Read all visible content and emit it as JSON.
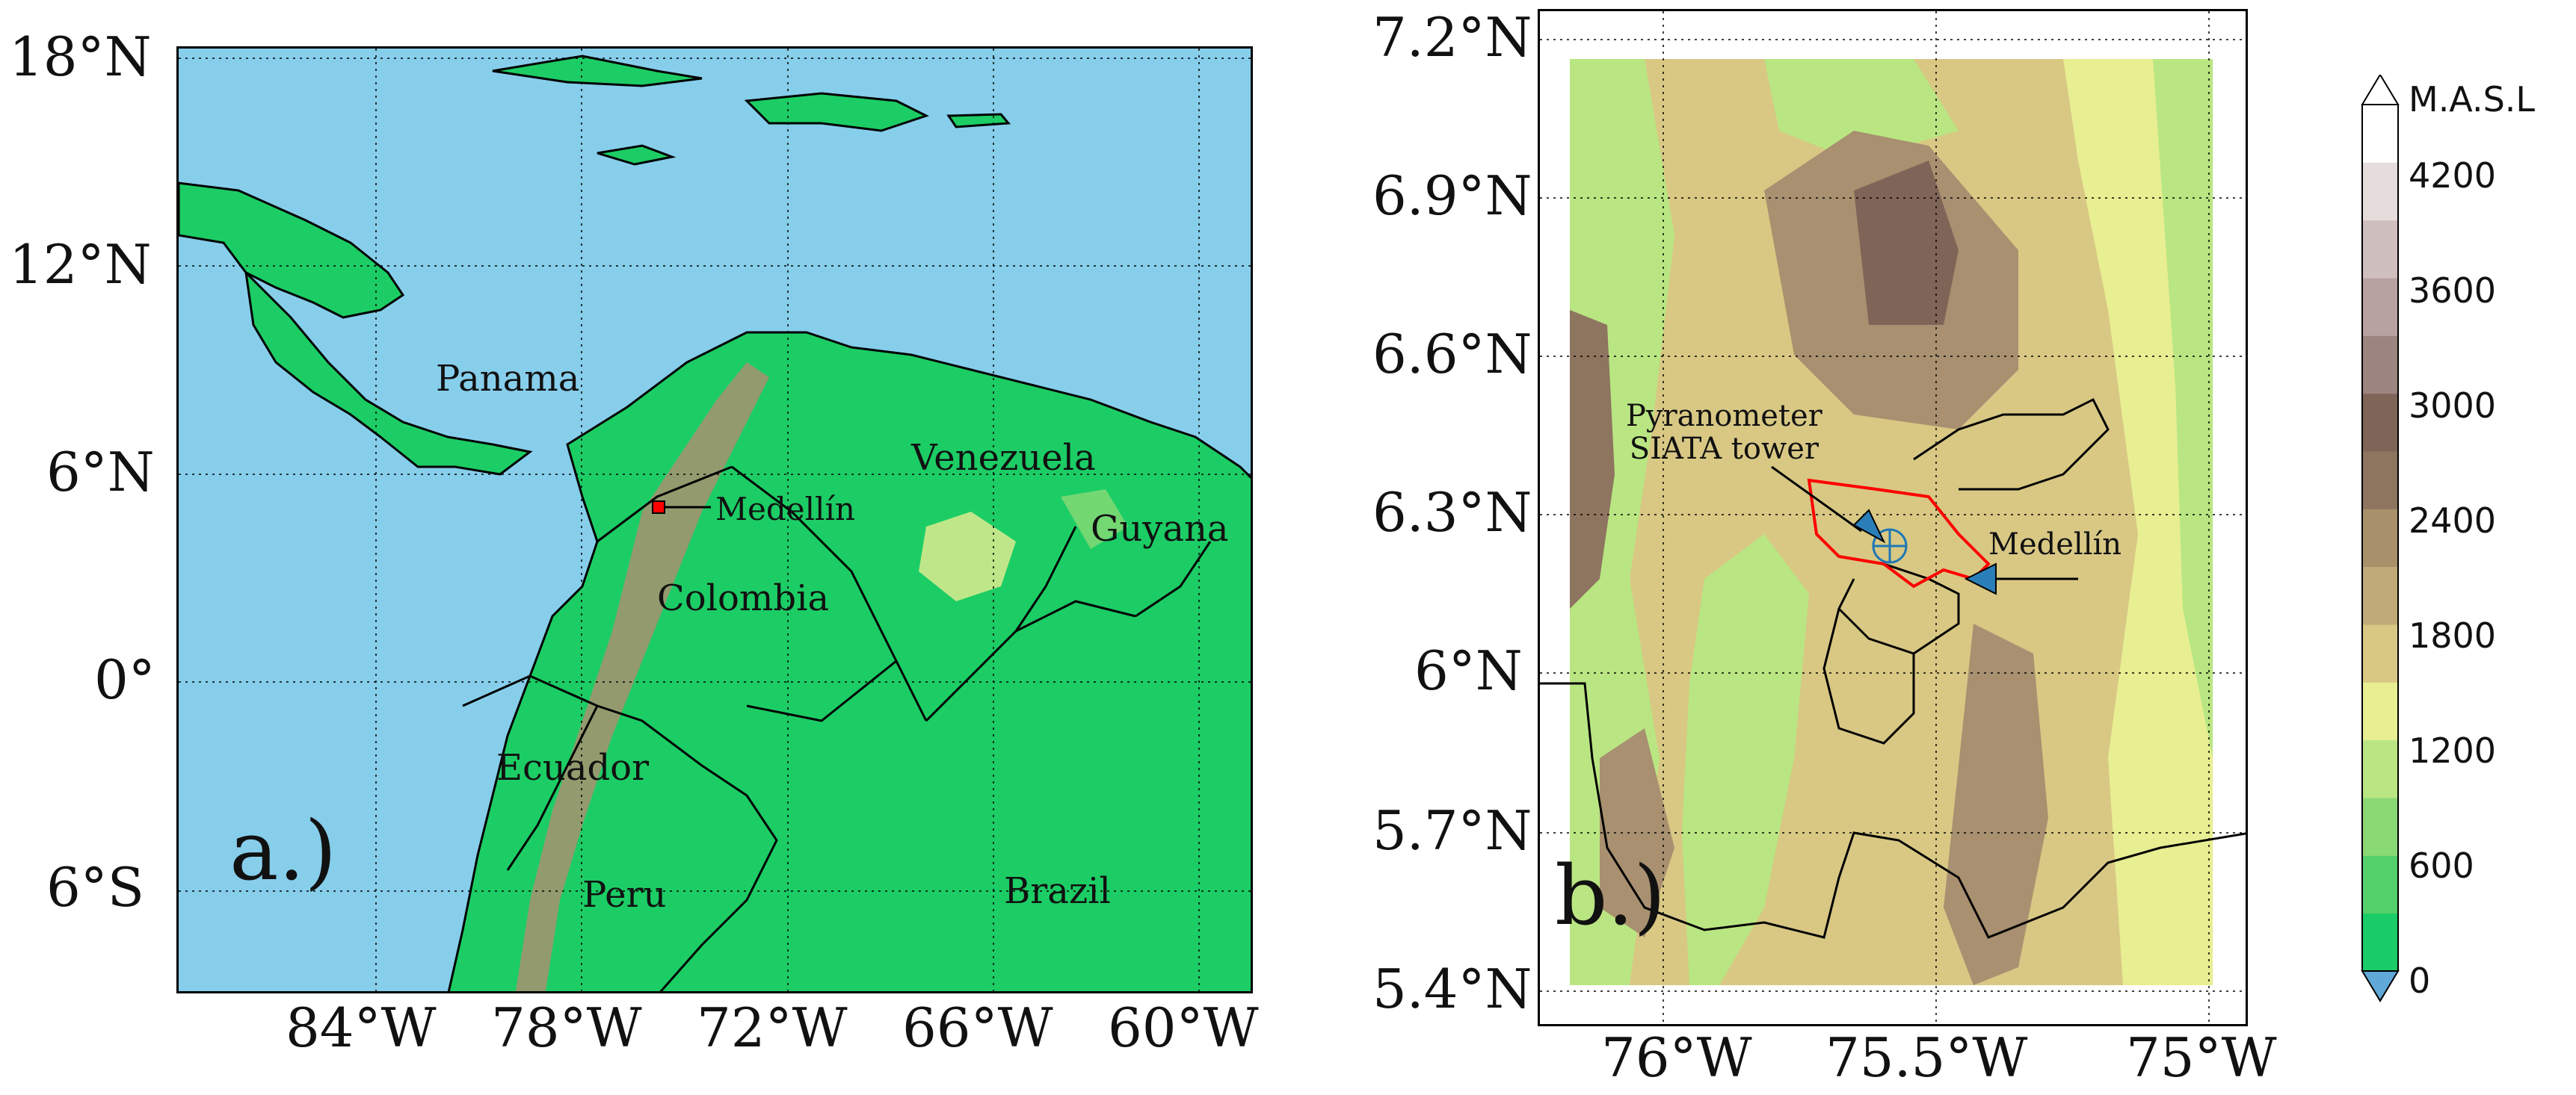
{
  "panel_a": {
    "letter": "a.)",
    "lat_ticks": [
      "18°N",
      "12°N",
      "6°N",
      "0°",
      "6°S"
    ],
    "lon_ticks": [
      "84°W",
      "78°W",
      "72°W",
      "66°W",
      "60°W"
    ],
    "countries": {
      "panama": "Panama",
      "venezuela": "Venezuela",
      "guyana": "Guyana",
      "colombia": "Colombia",
      "ecuador": "Ecuador",
      "peru": "Peru",
      "brazil": "Brazil"
    },
    "city": "Medellín",
    "colors": {
      "ocean": "#87ceeb",
      "land": "#1ccd65",
      "mountain": "#a89070"
    }
  },
  "panel_b": {
    "letter": "b.)",
    "lat_ticks": [
      "7.2°N",
      "6.9°N",
      "6.6°N",
      "6.3°N",
      "6°N",
      "5.7°N",
      "5.4°N"
    ],
    "lon_ticks": [
      "76°W",
      "75.5°W",
      "75°W"
    ],
    "annotation_tower": [
      "Pyranometer",
      "SIATA tower"
    ],
    "annotation_city": "Medellín",
    "boundary_color": "#ff0000"
  },
  "colorbar": {
    "unit": "M.A.S.L",
    "tick_labels": [
      "4200",
      "3600",
      "3000",
      "2400",
      "1800",
      "1200",
      "600",
      "0"
    ],
    "colors": [
      "#19cc67",
      "#53d06a",
      "#89d975",
      "#b9e682",
      "#e8ee92",
      "#d8c884",
      "#c0ab78",
      "#a8906a",
      "#8e7560",
      "#7f6558",
      "#9c8580",
      "#b8a2a0",
      "#cfbfbe",
      "#e6dcdb",
      "#ffffff"
    ],
    "under_color": "#5fa8d8"
  }
}
